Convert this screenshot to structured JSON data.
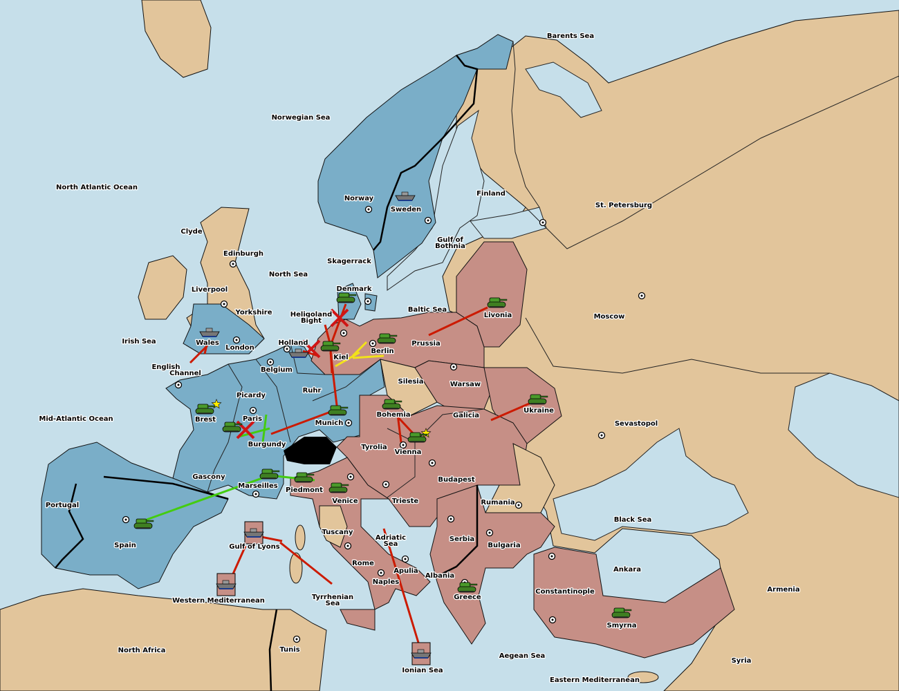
{
  "colors": {
    "sea": "#c6dfea",
    "neutral_land": "#e2c59b",
    "power_blue": "#7aaec8",
    "power_pink": "#c68f86",
    "impassable": "#000000",
    "army_unit": "#4a9a2a",
    "move_order": "#cc1a00",
    "support_order": "#f2e21a",
    "convoy_order_green": "#44cc11",
    "supply_center_star": "#ffee00"
  },
  "labels": [
    "North Atlantic Ocean",
    "Norwegian Sea",
    "Barents Sea",
    "Clyde",
    "Edinburgh",
    "Liverpool",
    "Yorkshire",
    "North Sea",
    "Irish Sea",
    "Wales",
    "London",
    "English",
    "Channel",
    "Mid-Atlantic Ocean",
    "Brest",
    "Picardy",
    "Paris",
    "Burgundy",
    "Gascony",
    "Marseilles",
    "Spain",
    "Portugal",
    "Gulf of Lyons",
    "Western Mediterranean",
    "North Africa",
    "Tunis",
    "Tyrrhenian",
    "Sea",
    "Tuscany",
    "Rome",
    "Naples",
    "Apulia",
    "Venice",
    "Piedmont",
    "Tyrolia",
    "Trieste",
    "Vienna",
    "Budapest",
    "Bohemia",
    "Galicia",
    "Munich",
    "Ruhr",
    "Belgium",
    "Holland",
    "Kiel",
    "Berlin",
    "Silesia",
    "Prussia",
    "Warsaw",
    "Livonia",
    "Baltic Sea",
    "Denmark",
    "Heligoland",
    "Bight",
    "Skagerrack",
    "Norway",
    "Sweden",
    "Finland",
    "Gulf of",
    "Bothnia",
    "St. Petersburg",
    "Moscow",
    "Ukraine",
    "Sevastopol",
    "Rumania",
    "Black Sea",
    "Serbia",
    "Bulgaria",
    "Albania",
    "Greece",
    "Adriatic",
    "Sea",
    "Ionian Sea",
    "Aegean Sea",
    "Constantinople",
    "Ankara",
    "Armenia",
    "Smyrna",
    "Syria",
    "Eastern Mediterranean"
  ],
  "unit_icons": [
    "army-icon",
    "fleet-icon"
  ]
}
